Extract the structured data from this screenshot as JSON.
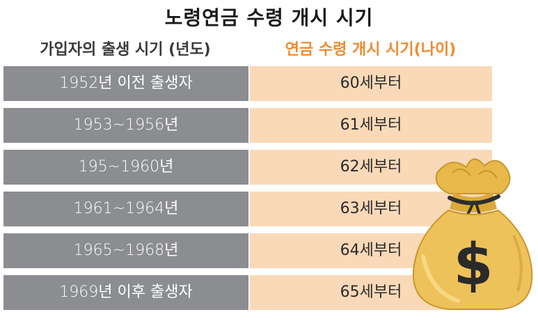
{
  "title": "노령연금 수령 개시 시기",
  "headers": {
    "left": "가입자의 출생 시기 (년도)",
    "right": "연금 수령 개시 시기(나이)"
  },
  "rows": [
    {
      "birth": "1952년 이전  출생자",
      "age": "60세부터"
    },
    {
      "birth": "1953~1956년",
      "age": "61세부터"
    },
    {
      "birth": "195~1960년",
      "age": "62세부터"
    },
    {
      "birth": "1961~1964년",
      "age": "63세부터"
    },
    {
      "birth": "1965~1968년",
      "age": "64세부터"
    },
    {
      "birth": "1969년 이후 출생자",
      "age": "65세부터"
    }
  ],
  "colors": {
    "left_cell": "#8b8d90",
    "right_cell": "#f9d9b8",
    "right_header": "#f08a2c",
    "money_bag": "#e8b84a"
  },
  "icons": {
    "money_bag": "money-bag-icon"
  }
}
